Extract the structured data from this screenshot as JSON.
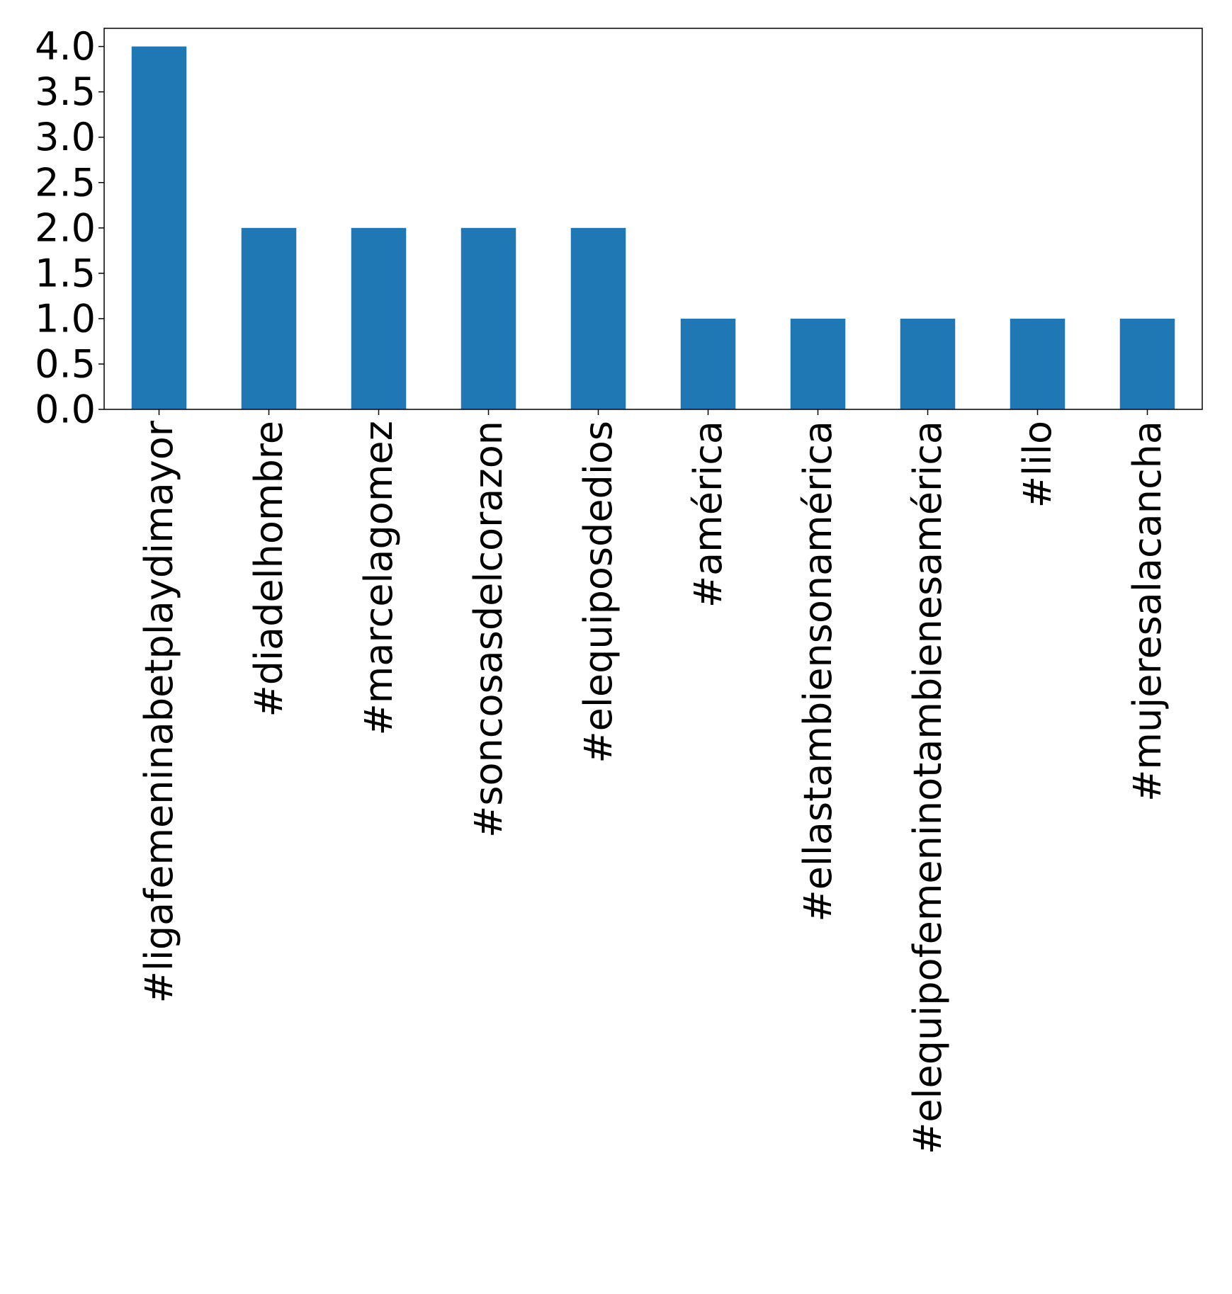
{
  "chart_data": {
    "type": "bar",
    "categories": [
      "#ligafemeninabetplaydimayor",
      "#diadelhombre",
      "#marcelagomez",
      "#soncosasdelcorazon",
      "#elequiposdedios",
      "#américa",
      "#ellastambiensonamérica",
      "#elequipofemeninotambienesamérica",
      "#lilo",
      "#mujeresalacancha"
    ],
    "values": [
      4,
      2,
      2,
      2,
      2,
      1,
      1,
      1,
      1,
      1
    ],
    "yticks": [
      "0.0",
      "0.5",
      "1.0",
      "1.5",
      "2.0",
      "2.5",
      "3.0",
      "3.5",
      "4.0"
    ],
    "ylim": [
      0,
      4.2
    ],
    "title": "",
    "xlabel": "",
    "ylabel": "",
    "grid": false,
    "bar_color": "#1f77b4"
  }
}
